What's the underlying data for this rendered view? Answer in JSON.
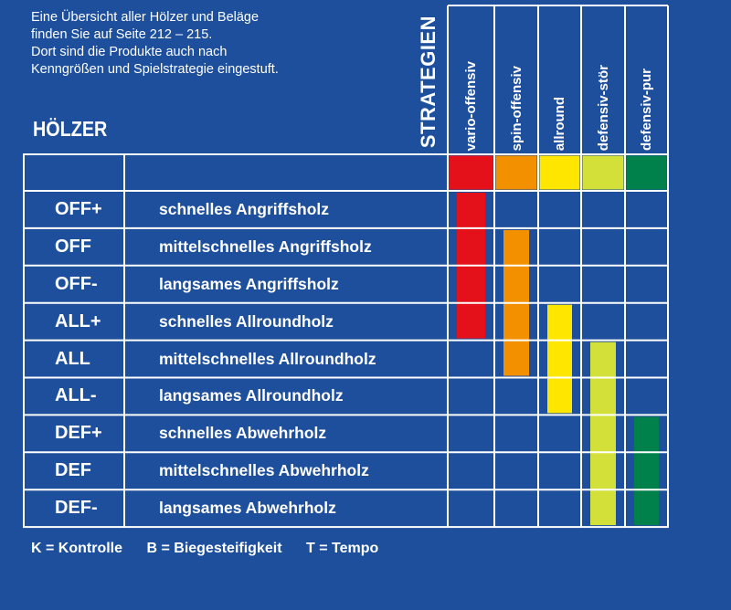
{
  "intro": {
    "lines": [
      "Eine Übersicht aller Hölzer und Beläge",
      "finden Sie auf Seite 212 – 215.",
      "Dort sind die Produkte auch nach",
      "Kenngrößen und Spielstrategie eingestuft."
    ]
  },
  "section_title": "HÖLZER",
  "strategies_label": "STRATEGIEN",
  "strategies": [
    {
      "label": "vario-offensiv",
      "color": "#e4111b"
    },
    {
      "label": "spin-offensiv",
      "color": "#f39000"
    },
    {
      "label": "allround",
      "color": "#ffe600"
    },
    {
      "label": "defensiv-stör",
      "color": "#d4e03a"
    },
    {
      "label": "defensiv-pur",
      "color": "#00804a"
    }
  ],
  "rows": [
    {
      "code": "OFF+",
      "description": "schnelles Angriffsholz"
    },
    {
      "code": "OFF",
      "description": "mittelschnelles Angriffsholz"
    },
    {
      "code": "OFF-",
      "description": "langsames Angriffsholz"
    },
    {
      "code": "ALL+",
      "description": "schnelles Allroundholz"
    },
    {
      "code": "ALL",
      "description": "mittelschnelles Allroundholz"
    },
    {
      "code": "ALL-",
      "description": "langsames Allroundholz"
    },
    {
      "code": "DEF+",
      "description": "schnelles Abwehrholz"
    },
    {
      "code": "DEF",
      "description": "mittelschnelles Abwehrholz"
    },
    {
      "code": "DEF-",
      "description": "langsames Abwehrholz"
    }
  ],
  "coverage": [
    {
      "strategy": "vario-offensiv",
      "from_row": "OFF+",
      "to_row": "ALL+"
    },
    {
      "strategy": "spin-offensiv",
      "from_row": "OFF",
      "to_row": "ALL"
    },
    {
      "strategy": "allround",
      "from_row": "ALL+",
      "to_row": "ALL-"
    },
    {
      "strategy": "defensiv-stör",
      "from_row": "ALL",
      "to_row": "DEF-"
    },
    {
      "strategy": "defensiv-pur",
      "from_row": "DEF+",
      "to_row": "DEF-"
    }
  ],
  "legend": [
    "K = Kontrolle",
    "B = Biegesteifigkeit",
    "T = Tempo"
  ]
}
